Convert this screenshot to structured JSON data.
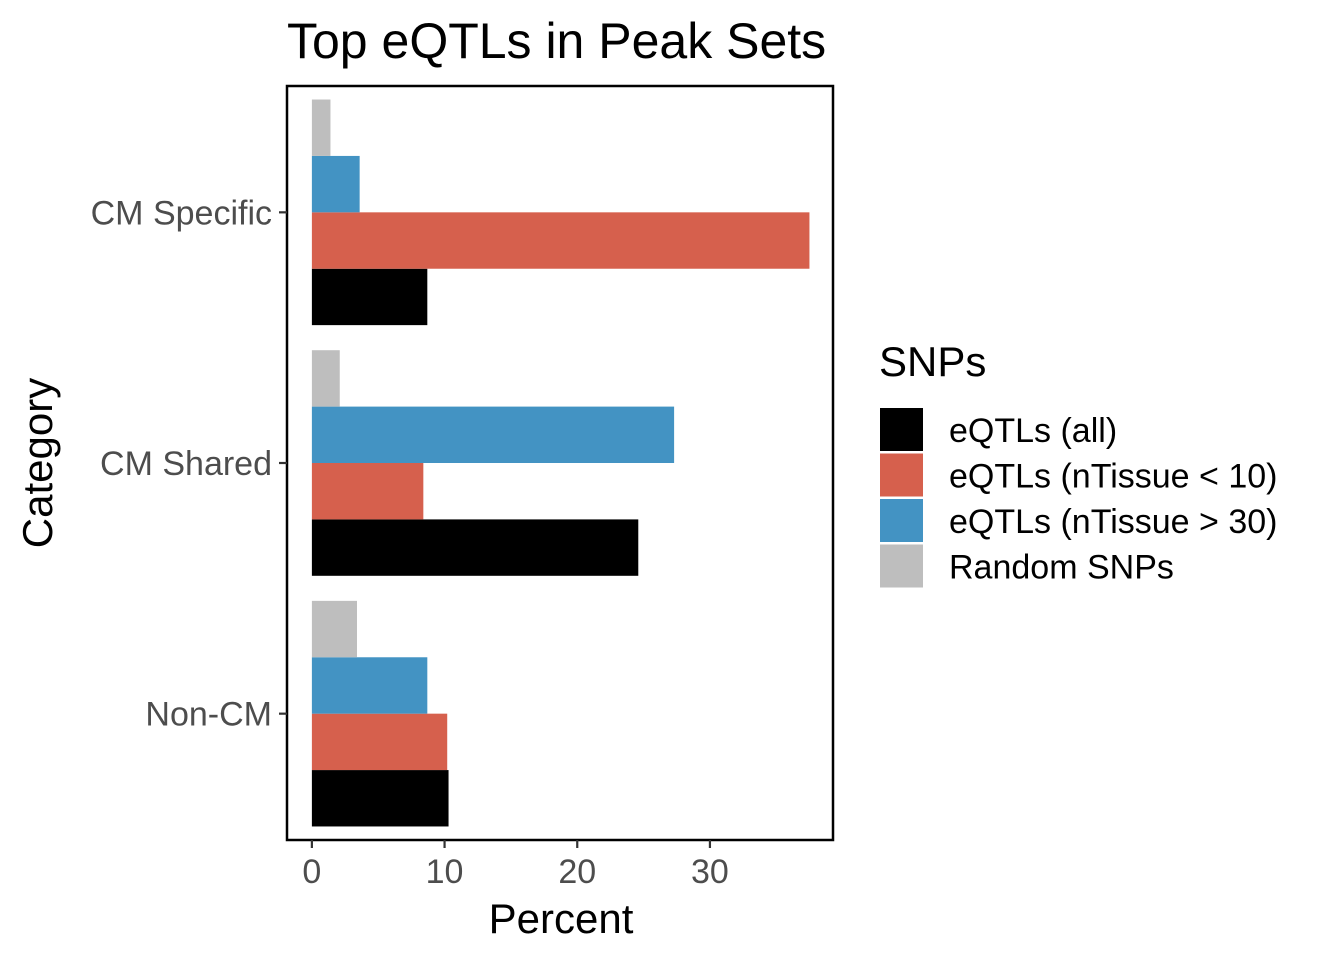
{
  "chart_data": {
    "type": "bar",
    "orientation": "horizontal",
    "title": "Top eQTLs in Peak Sets",
    "xlabel": "Percent",
    "ylabel": "Category",
    "categories": [
      "Non-CM",
      "CM Shared",
      "CM Specific"
    ],
    "x_ticks": [
      0,
      10,
      20,
      30
    ],
    "xlim": [
      -1.8,
      39.2
    ],
    "grid": false,
    "legend": {
      "title": "SNPs",
      "position": "right"
    },
    "series": [
      {
        "name": "eQTLs (all)",
        "color": "#000000",
        "values": [
          10.3,
          24.6,
          8.7
        ]
      },
      {
        "name": "eQTLs (nTissue < 10)",
        "color": "#D6604D",
        "values": [
          10.2,
          8.4,
          37.5
        ]
      },
      {
        "name": "eQTLs (nTissue > 30)",
        "color": "#4393C3",
        "values": [
          8.7,
          27.3,
          3.6
        ]
      },
      {
        "name": "Random SNPs",
        "color": "#BEBEBE",
        "values": [
          3.4,
          2.1,
          1.4
        ]
      }
    ]
  }
}
